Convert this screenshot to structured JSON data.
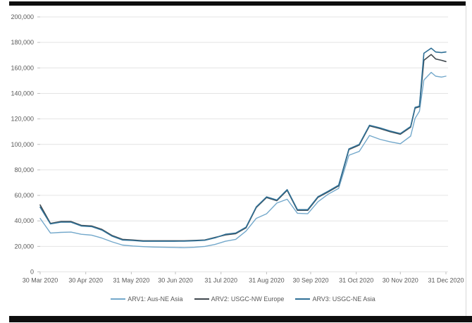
{
  "page": {
    "background": "#ffffff",
    "top_bar_color": "#0e0e0e",
    "bottom_bar_color": "#0e0e0e",
    "panel_border_color": "#d9d9d9"
  },
  "chart_data": {
    "type": "line",
    "title": "",
    "xlabel": "",
    "ylabel": "",
    "ylim": [
      0,
      200000
    ],
    "y_ticks": [
      0,
      20000,
      40000,
      60000,
      80000,
      100000,
      120000,
      140000,
      160000,
      180000,
      200000
    ],
    "xlim_days": [
      0,
      276
    ],
    "x_tick_offsets": [
      0,
      31,
      62,
      92,
      123,
      154,
      184,
      215,
      245,
      276
    ],
    "x_tick_labels": [
      "30 Mar 2020",
      "30 Apr 2020",
      "31 May 2020",
      "30 Jun 2020",
      "31 Jul 2020",
      "31 Aug 2020",
      "30 Sep 2020",
      "31 Oct 2020",
      "30 Nov 2020",
      "31 Dec 2020"
    ],
    "grid": true,
    "grid_color": "#e4e4e4",
    "axis_tick_color": "#bfbfbf",
    "tick_text_color": "#595959",
    "legend_position": "bottom",
    "x_offsets": [
      0,
      7,
      14,
      21,
      28,
      35,
      42,
      49,
      56,
      63,
      70,
      77,
      84,
      91,
      98,
      105,
      112,
      119,
      126,
      133,
      140,
      147,
      154,
      161,
      168,
      175,
      182,
      189,
      196,
      203,
      210,
      217,
      224,
      231,
      238,
      245,
      252,
      255,
      258,
      261,
      266,
      269,
      273,
      276
    ],
    "series": [
      {
        "name": "ARV1: Aus-NE Asia",
        "color": "#73a8cb",
        "stroke_width": 1.4,
        "values": [
          42000,
          30500,
          31000,
          31200,
          29500,
          28800,
          26500,
          23500,
          21000,
          20300,
          19800,
          19500,
          19300,
          19200,
          19000,
          19300,
          20000,
          21500,
          24000,
          25500,
          32000,
          42000,
          45600,
          54000,
          57000,
          46000,
          45600,
          55000,
          61000,
          65500,
          91500,
          94500,
          107000,
          104000,
          102000,
          100500,
          106500,
          120500,
          126000,
          150500,
          156500,
          153500,
          152800,
          153500
        ]
      },
      {
        "name": "ARV2: USGC-NW Europe",
        "color": "#40484e",
        "stroke_width": 1.6,
        "values": [
          52500,
          38000,
          39500,
          39500,
          36500,
          36000,
          33300,
          28500,
          25500,
          25000,
          24400,
          24400,
          24400,
          24400,
          24400,
          24700,
          25000,
          27000,
          29000,
          30000,
          34500,
          50500,
          58300,
          55800,
          64000,
          48300,
          48300,
          58500,
          62800,
          67500,
          96000,
          99500,
          114500,
          112500,
          110000,
          108000,
          113500,
          128500,
          129500,
          166000,
          170500,
          167000,
          166000,
          165000
        ]
      },
      {
        "name": "ARV3: USGC-NE Asia",
        "color": "#2f7096",
        "stroke_width": 1.6,
        "values": [
          50800,
          37600,
          39000,
          39000,
          36000,
          35500,
          32800,
          28000,
          25000,
          24600,
          24000,
          24000,
          24000,
          24000,
          24100,
          24400,
          24800,
          26700,
          29500,
          30500,
          35000,
          51000,
          58800,
          56300,
          64500,
          48800,
          48800,
          59000,
          63300,
          68000,
          96500,
          100000,
          115000,
          113000,
          110500,
          108500,
          114000,
          129000,
          130000,
          171500,
          175500,
          172500,
          172000,
          172500
        ]
      }
    ]
  }
}
